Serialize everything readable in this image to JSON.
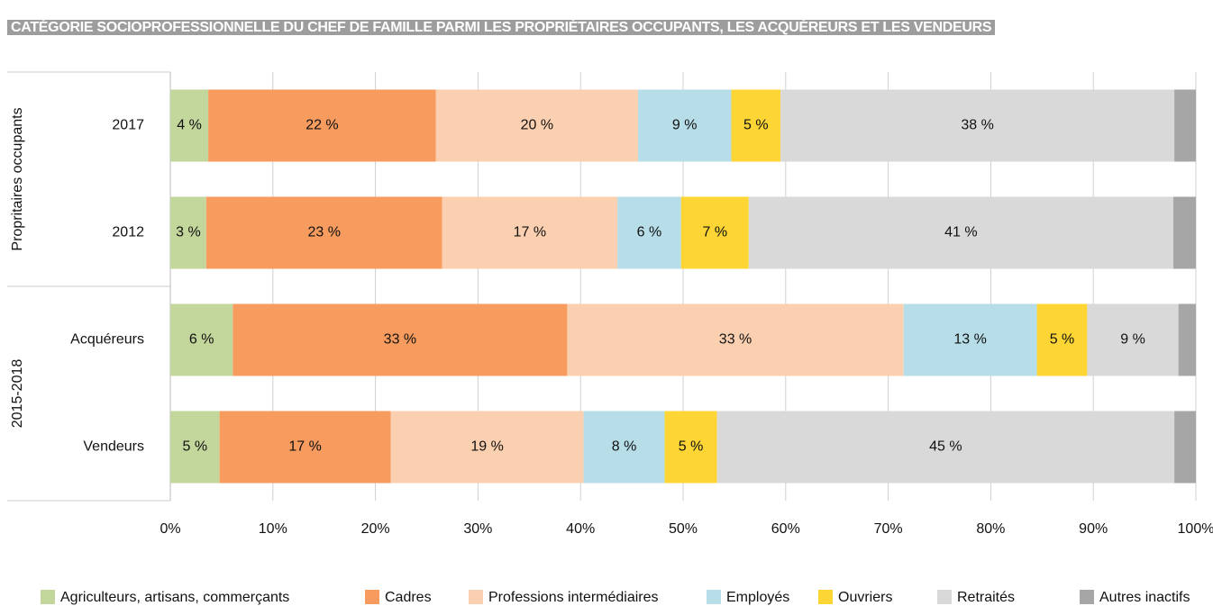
{
  "chart_data": {
    "type": "stacked-bar-horizontal",
    "title": "CATÉGORIE SOCIOPROFESSIONNELLE DU CHEF DE FAMILLE PARMI LES PROPRIÉTAIRES OCCUPANTS, LES ACQUÉREURS ET LES VENDEURS",
    "categories": [
      "2017",
      "2012",
      "Acquéreurs",
      "Vendeurs"
    ],
    "group_labels": [
      "Propritaires occupants",
      "2015-2018"
    ],
    "series": [
      {
        "name": "Agriculteurs, artisans, commerçants",
        "color": "#c3d69b",
        "values": [
          3.7,
          3.5,
          6.1,
          4.8
        ],
        "value_labels": [
          "4 %",
          "3 %",
          "6 %",
          "5 %"
        ]
      },
      {
        "name": "Cadres",
        "color": "#f79b5e",
        "values": [
          22.2,
          23.0,
          32.6,
          16.7
        ],
        "value_labels": [
          "22 %",
          "23 %",
          "33 %",
          "17 %"
        ]
      },
      {
        "name": "Professions intermédiaires",
        "color": "#fbd0b0",
        "values": [
          19.7,
          17.1,
          32.8,
          18.8
        ],
        "value_labels": [
          "20 %",
          "17 %",
          "33 %",
          "19 %"
        ]
      },
      {
        "name": "Employés",
        "color": "#b7dde8",
        "values": [
          9.1,
          6.2,
          13.0,
          7.9
        ],
        "value_labels": [
          "9 %",
          "6 %",
          "13 %",
          "8 %"
        ]
      },
      {
        "name": "Ouvriers",
        "color": "#fdd535",
        "values": [
          4.8,
          6.6,
          4.9,
          5.1
        ],
        "value_labels": [
          "5 %",
          "7 %",
          "5 %",
          "5 %"
        ]
      },
      {
        "name": "Retraités",
        "color": "#d9d9d9",
        "values": [
          38.4,
          41.4,
          8.9,
          44.6
        ],
        "value_labels": [
          "38 %",
          "41 %",
          "9 %",
          "45 %"
        ]
      },
      {
        "name": "Autres inactifs",
        "color": "#a6a6a6",
        "values": [
          2.1,
          2.2,
          1.7,
          2.1
        ]
      }
    ],
    "xlim": [
      0,
      100
    ],
    "xticks": [
      {
        "value": 0,
        "label": "0%"
      },
      {
        "value": 10,
        "label": "10%"
      },
      {
        "value": 20,
        "label": "20%"
      },
      {
        "value": 30,
        "label": "30%"
      },
      {
        "value": 40,
        "label": "40%"
      },
      {
        "value": 50,
        "label": "50%"
      },
      {
        "value": 60,
        "label": "60%"
      },
      {
        "value": 70,
        "label": "70%"
      },
      {
        "value": 80,
        "label": "80%"
      },
      {
        "value": 90,
        "label": "90%"
      },
      {
        "value": 100,
        "label": "100%"
      }
    ],
    "grid": true,
    "legend": "bottom"
  }
}
